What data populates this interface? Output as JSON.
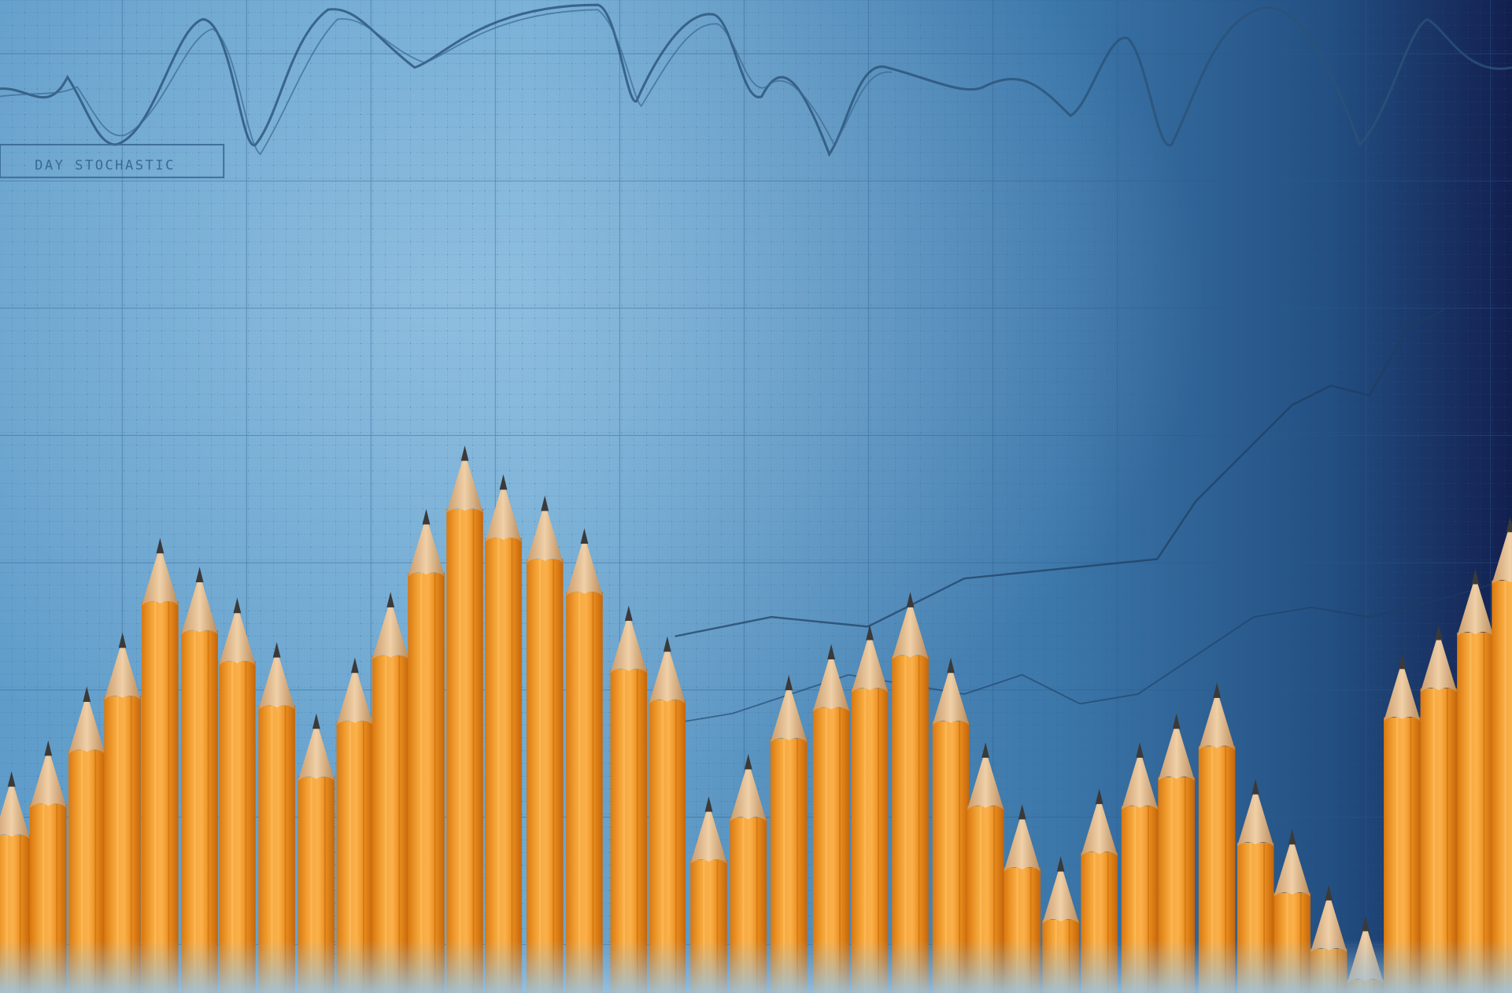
{
  "chart_label": "DAY STOCHASTIC"
}
